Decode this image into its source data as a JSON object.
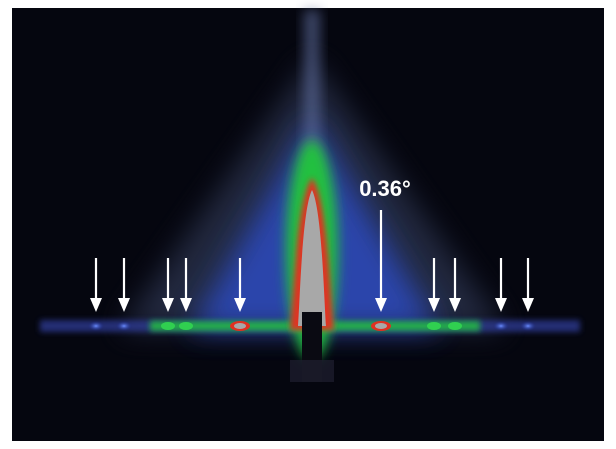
{
  "annotation": "0.36°"
}
